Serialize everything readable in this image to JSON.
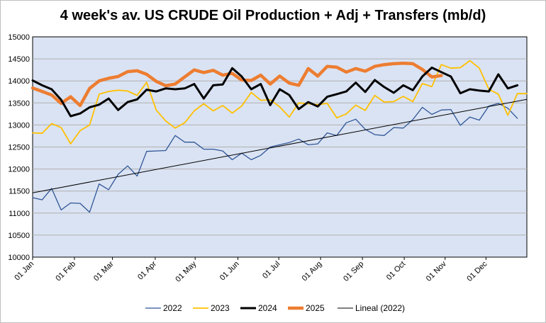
{
  "chart_data": {
    "type": "line",
    "title": "4 week's av. US CRUDE Oil Production + Adj + Transfers (mb/d)",
    "xlabel": "",
    "ylabel": "",
    "ylim": [
      10000,
      15000
    ],
    "yticks": [
      10000,
      10500,
      11000,
      11500,
      12000,
      12500,
      13000,
      13500,
      14000,
      14500,
      15000
    ],
    "ytick_labels": [
      "10000",
      "10500",
      "11000",
      "11500",
      "12000",
      "12500",
      "13000",
      "13500",
      "14000",
      "14500",
      "15000"
    ],
    "xlim": [
      1,
      53
    ],
    "xticks": [
      1,
      5.4,
      9.4,
      13.9,
      18.1,
      22.6,
      26.9,
      31.3,
      35.7,
      40.1,
      44.4,
      48.7
    ],
    "xtick_labels": [
      "01 Jan",
      "01 Feb",
      "01 Mar",
      "01 Apr",
      "01 May",
      "01 Jun",
      "01 Jul",
      "01 Aug",
      "01 Sep",
      "01 Oct",
      "01 Nov",
      "01 Dec"
    ],
    "grid": true,
    "legend_position": "bottom",
    "background_color": "#dae3f3",
    "series": [
      {
        "name": "2022",
        "color": "#2f5597",
        "width": 1.3,
        "x": [
          1,
          2,
          3,
          4,
          5,
          6,
          7,
          8,
          9,
          10,
          11,
          12,
          13,
          14,
          15,
          16,
          17,
          18,
          19,
          20,
          21,
          22,
          23,
          24,
          25,
          26,
          27,
          28,
          29,
          30,
          31,
          32,
          33,
          34,
          35,
          36,
          37,
          38,
          39,
          40,
          41,
          42,
          43,
          44,
          45,
          46,
          47,
          48,
          49,
          50,
          51,
          52
        ],
        "values": [
          11350,
          11300,
          11560,
          11070,
          11230,
          11220,
          11020,
          11660,
          11530,
          11880,
          12070,
          11840,
          12400,
          12410,
          12420,
          12760,
          12610,
          12610,
          12450,
          12450,
          12410,
          12210,
          12360,
          12210,
          12310,
          12500,
          12550,
          12600,
          12680,
          12550,
          12570,
          12820,
          12760,
          13050,
          13130,
          12900,
          12780,
          12760,
          12940,
          12930,
          13120,
          13400,
          13240,
          13340,
          13350,
          12990,
          13180,
          13110,
          13430,
          13490,
          13380,
          13150
        ]
      },
      {
        "name": "2023",
        "color": "#ffc000",
        "width": 1.8,
        "x": [
          1,
          2,
          3,
          4,
          5,
          6,
          7,
          8,
          9,
          10,
          11,
          12,
          13,
          14,
          15,
          16,
          17,
          18,
          19,
          20,
          21,
          22,
          23,
          24,
          25,
          26,
          27,
          28,
          29,
          30,
          31,
          32,
          33,
          34,
          35,
          36,
          37,
          38,
          39,
          40,
          41,
          42,
          43,
          44,
          45,
          46,
          47,
          48,
          49,
          50,
          51,
          52,
          53
        ],
        "values": [
          12820,
          12810,
          13030,
          12940,
          12570,
          12870,
          13000,
          13700,
          13760,
          13790,
          13770,
          13670,
          13970,
          13340,
          13090,
          12930,
          13050,
          13320,
          13480,
          13320,
          13440,
          13270,
          13430,
          13740,
          13560,
          13570,
          13410,
          13180,
          13500,
          13480,
          13460,
          13490,
          13160,
          13250,
          13450,
          13330,
          13670,
          13520,
          13530,
          13650,
          13530,
          13940,
          13870,
          14370,
          14290,
          14300,
          14460,
          14290,
          13810,
          13700,
          13220,
          13710,
          13710
        ]
      },
      {
        "name": "2024",
        "color": "#000000",
        "width": 3,
        "x": [
          1,
          2,
          3,
          4,
          5,
          6,
          7,
          8,
          9,
          10,
          11,
          12,
          13,
          14,
          15,
          16,
          17,
          18,
          19,
          20,
          21,
          22,
          23,
          24,
          25,
          26,
          27,
          28,
          29,
          30,
          31,
          32,
          33,
          34,
          35,
          36,
          37,
          38,
          39,
          40,
          41,
          42,
          43,
          44,
          45,
          46,
          47,
          48,
          49,
          50,
          51,
          52
        ],
        "values": [
          14010,
          13900,
          13810,
          13570,
          13200,
          13260,
          13400,
          13460,
          13600,
          13340,
          13520,
          13580,
          13800,
          13760,
          13830,
          13810,
          13830,
          13930,
          13600,
          13900,
          13920,
          14290,
          14100,
          13810,
          13930,
          13450,
          13810,
          13680,
          13360,
          13520,
          13420,
          13640,
          13700,
          13760,
          13960,
          13750,
          14020,
          13860,
          13730,
          13900,
          13790,
          14100,
          14300,
          14200,
          14100,
          13720,
          13810,
          13780,
          13760,
          14150,
          13830,
          13900
        ]
      },
      {
        "name": "2025",
        "color": "#ed7d31",
        "width": 4.5,
        "x": [
          1,
          2,
          3,
          4,
          5,
          6,
          7,
          8,
          9,
          10,
          11,
          12,
          13,
          14,
          15,
          16,
          17,
          18,
          19,
          20,
          21,
          22,
          23,
          24,
          25,
          26,
          27,
          28,
          29,
          30,
          31,
          32,
          33,
          34,
          35,
          36,
          37,
          38,
          39,
          40,
          41,
          42,
          43,
          44
        ],
        "values": [
          13840,
          13760,
          13680,
          13490,
          13640,
          13440,
          13830,
          14000,
          14060,
          14100,
          14210,
          14230,
          14150,
          13990,
          13890,
          13930,
          14090,
          14250,
          14190,
          14240,
          14130,
          14170,
          14020,
          14010,
          14130,
          13930,
          14110,
          13950,
          13900,
          14280,
          14110,
          14330,
          14310,
          14200,
          14280,
          14220,
          14330,
          14370,
          14390,
          14400,
          14390,
          14260,
          14090,
          14120
        ]
      },
      {
        "name": "Lineal (2022)",
        "color": "#000000",
        "width": 1,
        "x": [
          1,
          53
        ],
        "values": [
          11460,
          13580
        ]
      }
    ]
  }
}
